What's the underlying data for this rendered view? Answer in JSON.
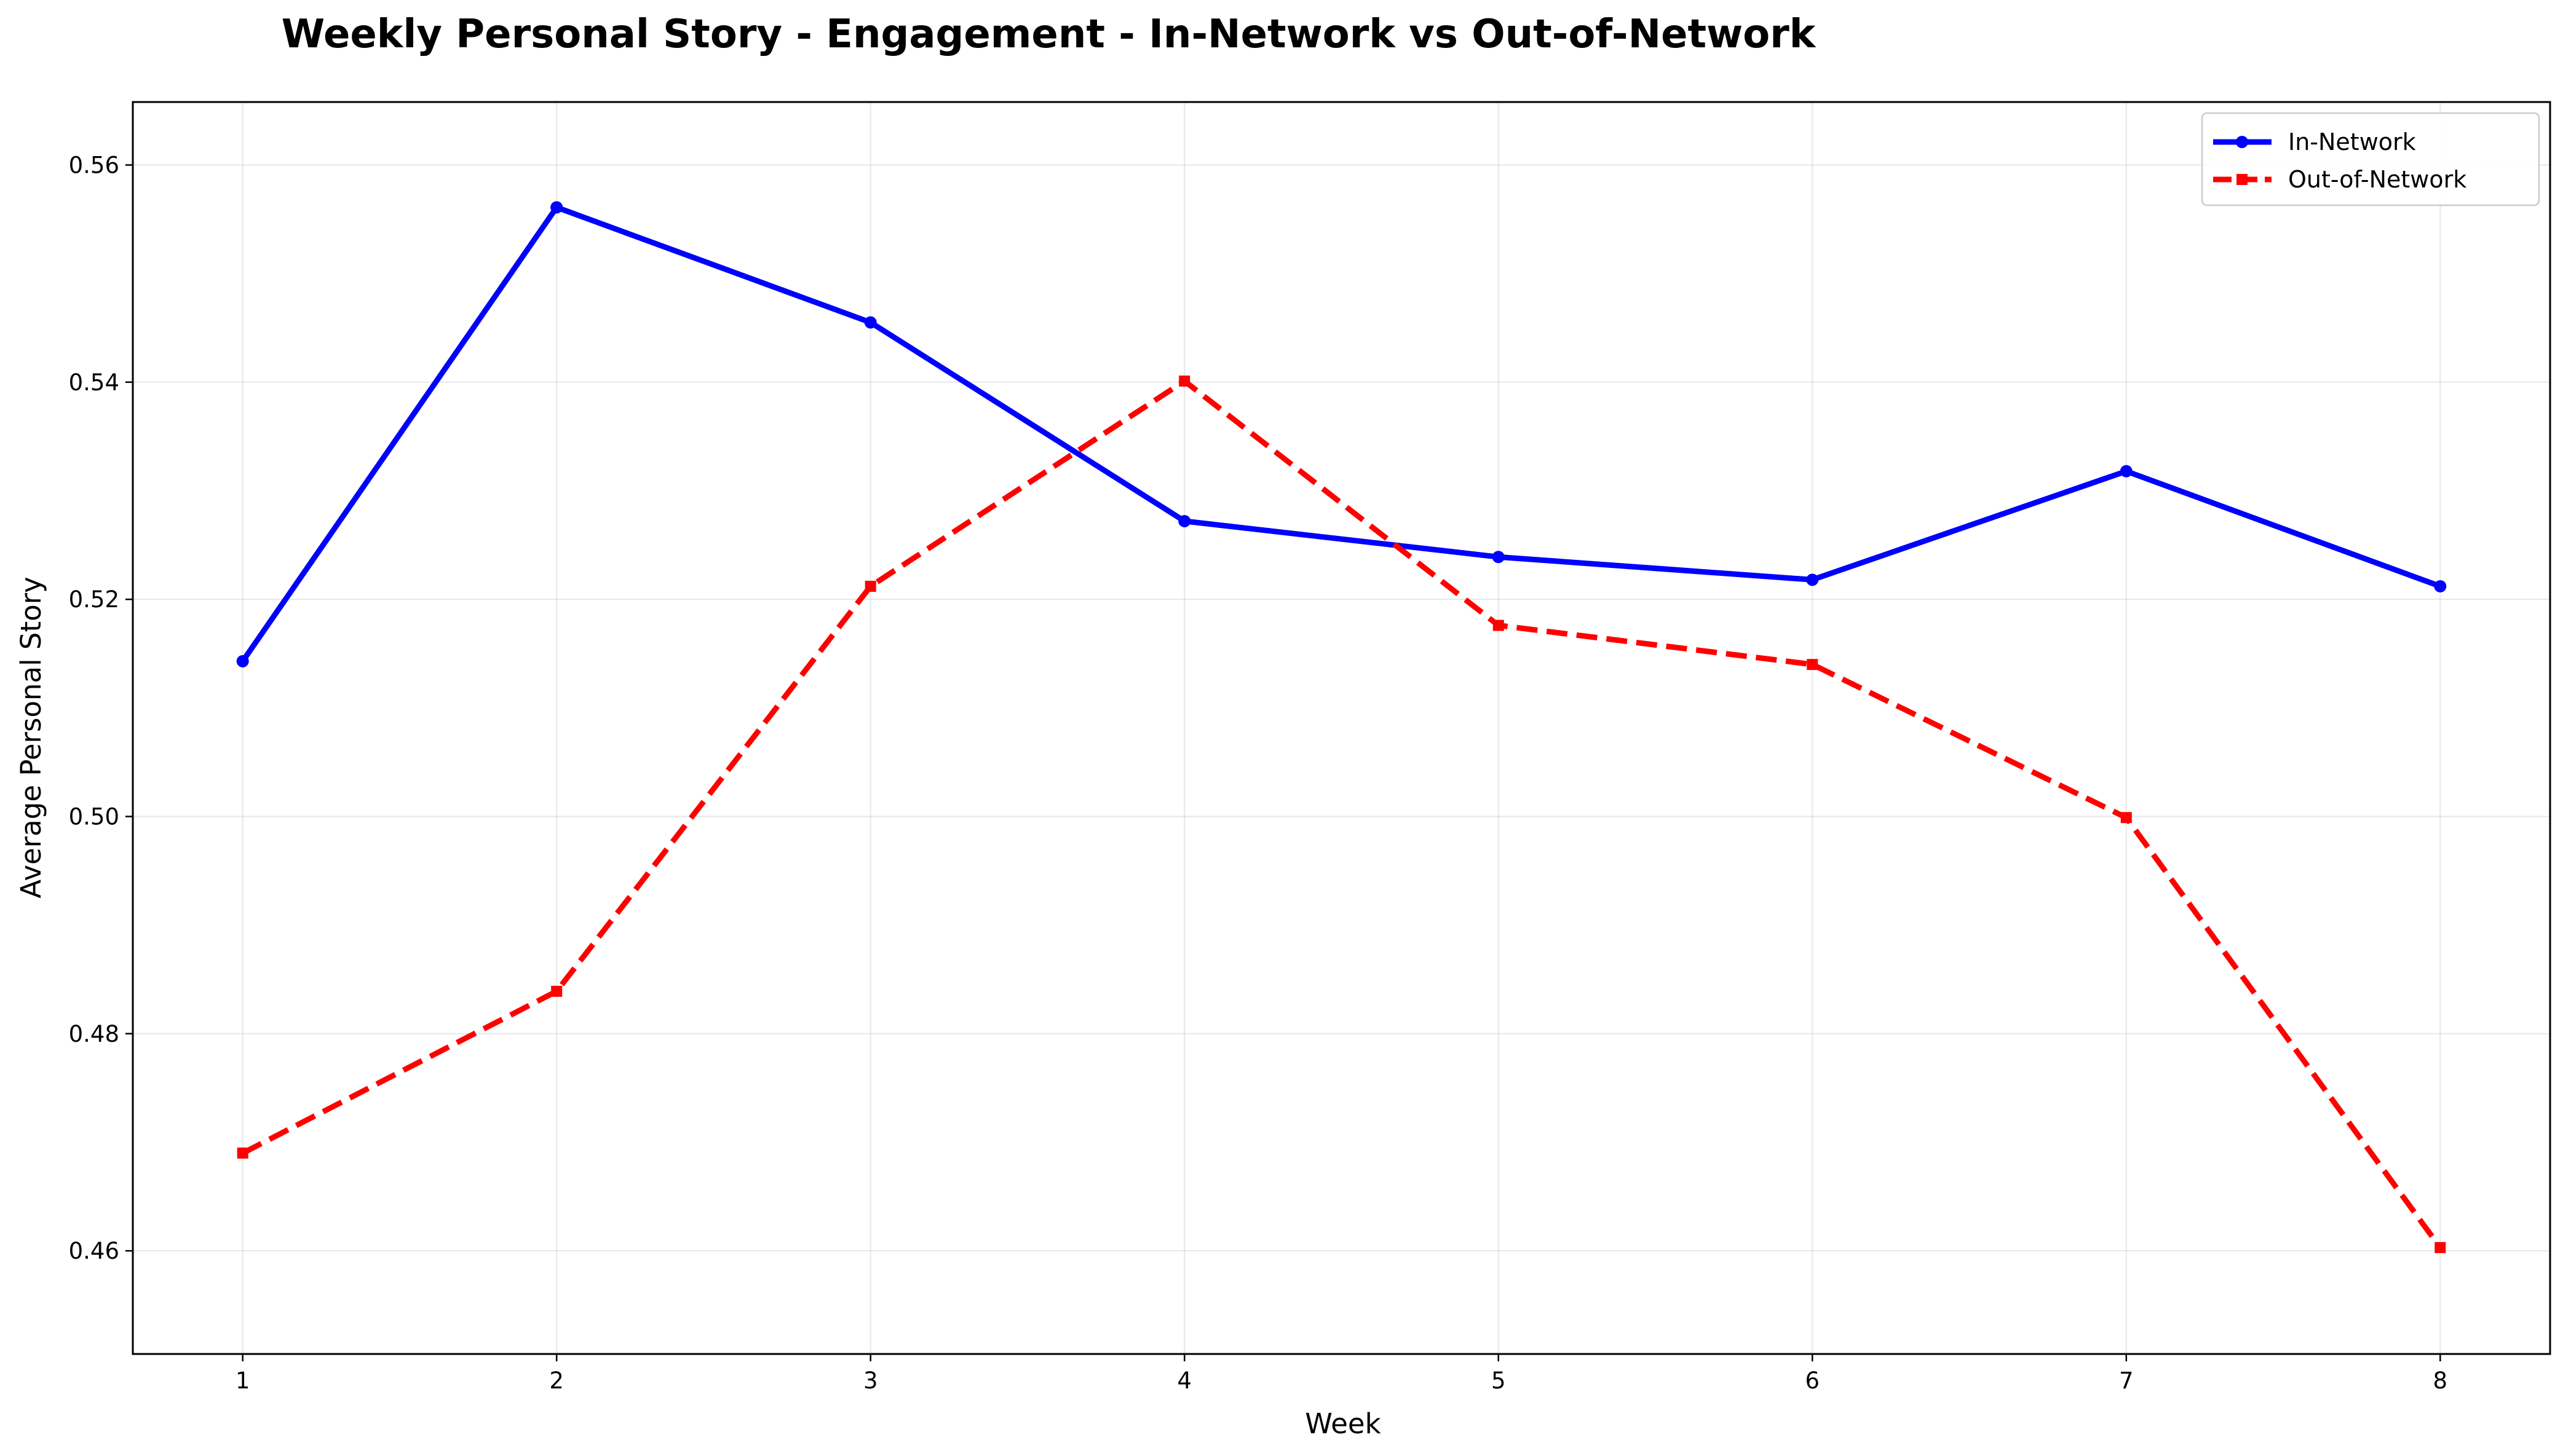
{
  "chart_data": {
    "type": "line",
    "title": "Weekly Personal Story - Engagement - In-Network vs Out-of-Network",
    "xlabel": "Week",
    "ylabel": "Average Personal Story",
    "x": [
      1,
      2,
      3,
      4,
      5,
      6,
      7,
      8
    ],
    "xlim": [
      0.65,
      8.35
    ],
    "ylim": [
      0.4505,
      0.5658
    ],
    "xticks": [
      1,
      2,
      3,
      4,
      5,
      6,
      7,
      8
    ],
    "yticks": [
      0.46,
      0.48,
      0.5,
      0.52,
      0.54,
      0.56
    ],
    "ytick_labels": [
      "0.46",
      "0.48",
      "0.50",
      "0.52",
      "0.54",
      "0.56"
    ],
    "grid": true,
    "legend_position": "top-right",
    "series": [
      {
        "name": "In-Network",
        "values": [
          0.5143,
          0.5561,
          0.5455,
          0.5272,
          0.5239,
          0.5218,
          0.5318,
          0.5212
        ],
        "color": "#0000ff",
        "line_style": "solid",
        "marker": "circle"
      },
      {
        "name": "Out-of-Network",
        "values": [
          0.469,
          0.4839,
          0.5212,
          0.5401,
          0.5176,
          0.514,
          0.4999,
          0.4603
        ],
        "color": "#ff0000",
        "line_style": "dashed",
        "marker": "square"
      }
    ]
  }
}
